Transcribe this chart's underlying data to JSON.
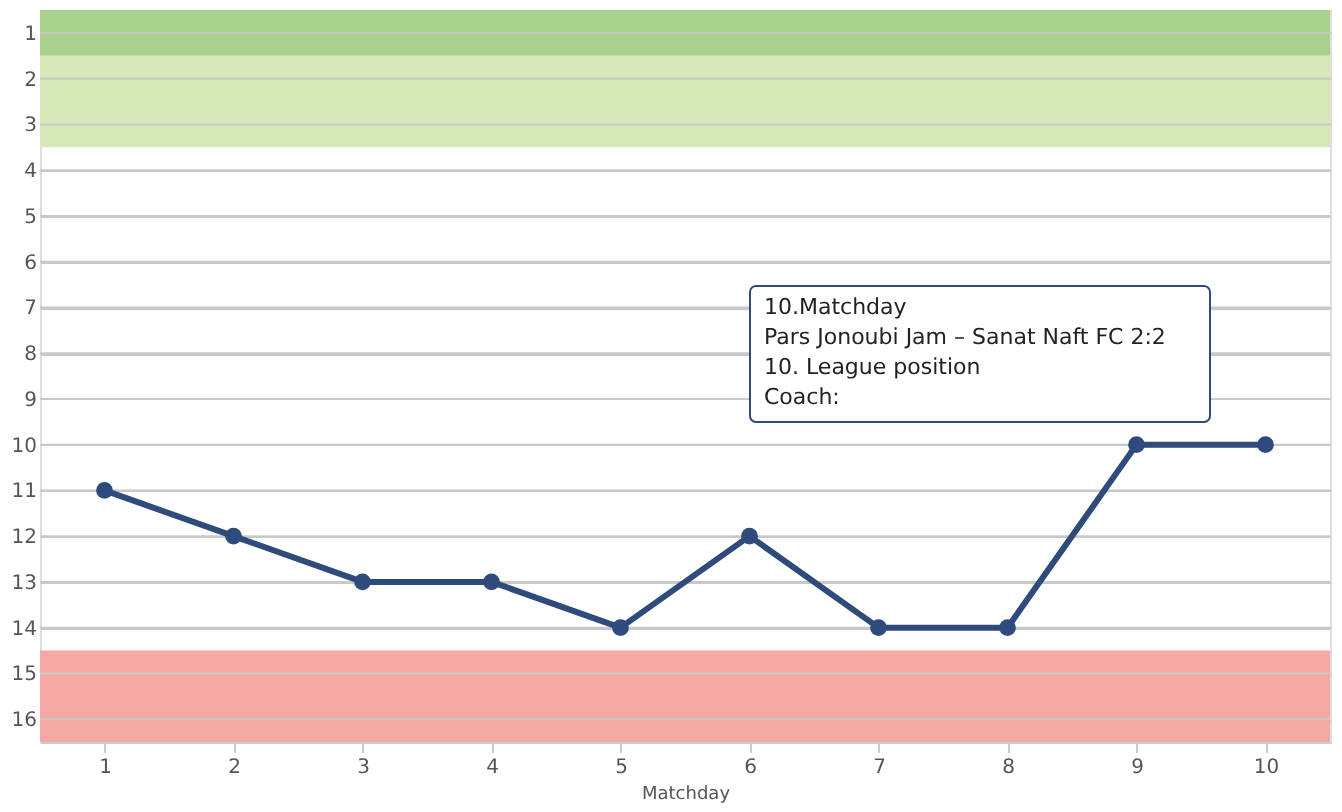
{
  "chart_data": {
    "type": "line",
    "xlabel": "Matchday",
    "categories": [
      "1",
      "2",
      "3",
      "4",
      "5",
      "6",
      "7",
      "8",
      "9",
      "10"
    ],
    "series": [
      {
        "color": "#2f4b7c",
        "values": [
          11,
          12,
          13,
          13,
          14,
          12,
          14,
          14,
          10,
          10
        ]
      }
    ],
    "ylim": [
      16.5,
      0.5
    ],
    "yticks": [
      1,
      2,
      3,
      4,
      5,
      6,
      7,
      8,
      9,
      10,
      11,
      12,
      13,
      14,
      15,
      16
    ],
    "grid": "y",
    "legend": false,
    "marker": "circle",
    "line_style": "solid",
    "bands": [
      {
        "axis": "y",
        "from": 0.5,
        "to": 1.5,
        "color": "#a9d18e"
      },
      {
        "axis": "y",
        "from": 1.5,
        "to": 3.5,
        "color": "#d6e9b8"
      },
      {
        "axis": "y",
        "from": 14.5,
        "to": 16.5,
        "color": "#f5a7a4"
      }
    ],
    "annotations": [
      "10.Matchday",
      "Pars Jonoubi Jam – Sanat Naft FC 2:2",
      "10. League position",
      "Coach:"
    ]
  }
}
